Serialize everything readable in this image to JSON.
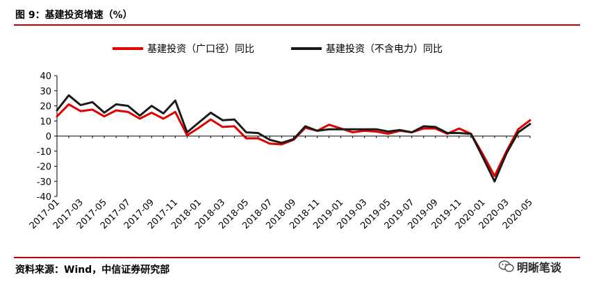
{
  "figure": {
    "title": "图 9：基建投资增速（%）",
    "source": "资料来源：Wind，中信证券研究部",
    "watermark": "明晰笔谈"
  },
  "chart_data": {
    "type": "line",
    "title": "图 9：基建投资增速（%）",
    "xlabel": "",
    "ylabel": "",
    "ylim": [
      -40,
      40
    ],
    "yticks": [
      -40,
      -30,
      -20,
      -10,
      0,
      10,
      20,
      30,
      40
    ],
    "grid": false,
    "legend_position": "top",
    "x": [
      "2017-01",
      "2017-02",
      "2017-03",
      "2017-04",
      "2017-05",
      "2017-06",
      "2017-07",
      "2017-08",
      "2017-09",
      "2017-10",
      "2017-11",
      "2017-12",
      "2018-01",
      "2018-02",
      "2018-03",
      "2018-04",
      "2018-05",
      "2018-06",
      "2018-07",
      "2018-08",
      "2018-09",
      "2018-10",
      "2018-11",
      "2018-12",
      "2019-01",
      "2019-02",
      "2019-03",
      "2019-04",
      "2019-05",
      "2019-06",
      "2019-07",
      "2019-08",
      "2019-09",
      "2019-10",
      "2019-11",
      "2019-12",
      "2020-01",
      "2020-02",
      "2020-03",
      "2020-04",
      "2020-05"
    ],
    "xtick_labels": [
      "2017-01",
      "2017-03",
      "2017-05",
      "2017-07",
      "2017-09",
      "2017-11",
      "2018-01",
      "2018-03",
      "2018-05",
      "2018-07",
      "2018-09",
      "2018-11",
      "2019-01",
      "2019-03",
      "2019-05",
      "2019-07",
      "2019-09",
      "2019-11",
      "2020-01",
      "2020-03",
      "2020-05"
    ],
    "series": [
      {
        "name": "基建投资（广口径）同比",
        "color": "#e00000",
        "values": [
          13,
          21,
          16.5,
          17.5,
          13,
          17,
          16,
          11.5,
          15.5,
          11.5,
          16,
          0.5,
          5.5,
          11,
          6,
          6.5,
          -1.5,
          -1.5,
          -5,
          -5.5,
          -2.5,
          5.5,
          3.5,
          7.5,
          5,
          2.5,
          3.5,
          3,
          1.5,
          3.5,
          2.5,
          5,
          5,
          1.5,
          5,
          1.5,
          -12,
          -26.5,
          -10,
          4.5,
          10.5
        ]
      },
      {
        "name": "基建投资（不含电力）同比",
        "color": "#1a1a1a",
        "values": [
          17,
          27,
          20.5,
          22.5,
          15.5,
          21,
          20,
          13.5,
          20,
          15,
          23.5,
          2.5,
          9,
          15.5,
          10.5,
          11,
          2.5,
          2,
          -2.5,
          -4.5,
          -2,
          6.5,
          3.5,
          4.5,
          4.5,
          4.5,
          4.5,
          4.5,
          3,
          4,
          2.5,
          6.5,
          6,
          2,
          2,
          1.5,
          -14,
          -30,
          -11.5,
          2.5,
          8
        ]
      }
    ]
  }
}
